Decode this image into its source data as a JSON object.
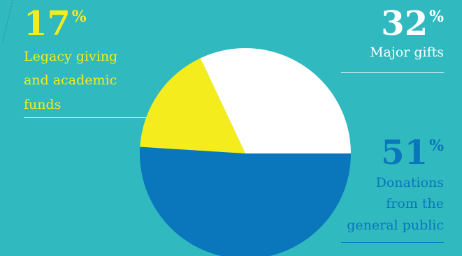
{
  "chart_data": {
    "type": "pie",
    "title": "",
    "slices": [
      {
        "label": "Major gifts",
        "value": 32,
        "color": "#ffffff"
      },
      {
        "label": "Donations from the general public",
        "value": 51,
        "color": "#0a76bc"
      },
      {
        "label": "Legacy giving and academic funds",
        "value": 17,
        "color": "#f4ec1c"
      }
    ]
  },
  "labels": {
    "legacy": {
      "pct": "17",
      "sign": "%",
      "lines": [
        "Legacy giving",
        "and academic",
        "funds"
      ]
    },
    "major": {
      "pct": "32",
      "sign": "%",
      "lines": [
        "Major gifts"
      ]
    },
    "public": {
      "pct": "51",
      "sign": "%",
      "lines": [
        "Donations",
        "from the",
        "general public"
      ]
    }
  },
  "colors": {
    "background": "#30b9bf",
    "legacy": "#f4ec1c",
    "major": "#ffffff",
    "public": "#0a76bc"
  }
}
